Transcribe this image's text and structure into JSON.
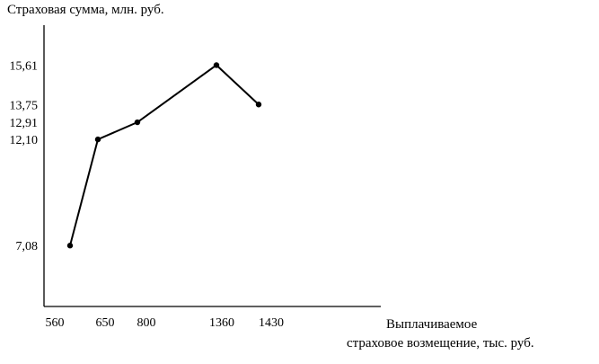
{
  "chart_data": {
    "type": "line",
    "ylabel": "Страховая сумма, млн. руб.",
    "xlabel_line1": "Выплачиваемое",
    "xlabel_line2": "страховое возмещение, тыс. руб.",
    "x_ticks": [
      "560",
      "650",
      "800",
      "1360",
      "1430"
    ],
    "y_ticks": [
      "15,61",
      "13,75",
      "12,91",
      "12,10",
      "7,08"
    ],
    "series": [
      {
        "x": [
          "560",
          "650",
          "800",
          "1360",
          "1430"
        ],
        "values": [
          7.08,
          12.1,
          12.91,
          15.61,
          13.75
        ]
      }
    ],
    "ylim": [
      4.2,
      17.5
    ],
    "grid": false,
    "legend": "none"
  }
}
